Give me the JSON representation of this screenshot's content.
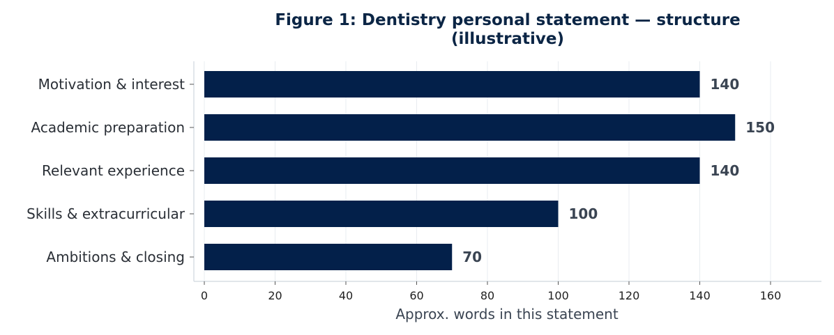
{
  "chart_data": {
    "type": "bar",
    "orientation": "horizontal",
    "title": "Figure 1: Dentistry personal statement — structure\n(illustrative)",
    "categories": [
      "Motivation & interest",
      "Academic preparation",
      "Relevant experience",
      "Skills & extracurricular",
      "Ambitions & closing"
    ],
    "values": [
      140,
      150,
      140,
      100,
      70
    ],
    "data_labels": [
      "140",
      "150",
      "140",
      "100",
      "70"
    ],
    "xlabel": "Approx. words in this statement",
    "ylabel": "",
    "xlim": [
      0,
      175
    ],
    "xticks": [
      0,
      20,
      40,
      60,
      80,
      100,
      120,
      140,
      160
    ],
    "grid": "vertical",
    "legend": "none",
    "bar_color": "#03204a",
    "grid_color": "#e8ecf0",
    "axis_color": "#cfd6de"
  }
}
